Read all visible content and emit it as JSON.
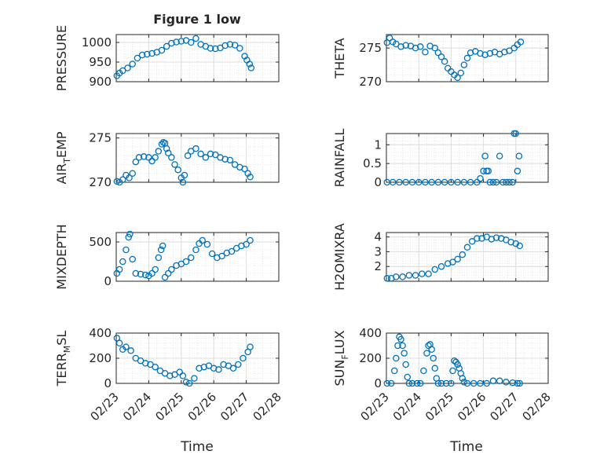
{
  "figure": {
    "title": "Figure 1 low",
    "marker_color": "#0072BD",
    "x_tick_labels": [
      "02/23",
      "02/24",
      "02/25",
      "02/26",
      "02/27",
      "02/28"
    ],
    "x_label": "Time"
  },
  "chart_data": [
    {
      "type": "scatter",
      "ylabel": "PRESSURE",
      "ylim": [
        900,
        1020
      ],
      "yticks": [
        900,
        950,
        1000
      ],
      "xlim": [
        "02/23",
        "02/28"
      ],
      "grid": true,
      "marker": "circle-open",
      "x_days": [
        0.02,
        0.1,
        0.2,
        0.35,
        0.5,
        0.65,
        0.8,
        0.95,
        1.1,
        1.25,
        1.4,
        1.55,
        1.7,
        1.85,
        2.0,
        2.15,
        2.3,
        2.45,
        2.6,
        2.75,
        2.9,
        3.05,
        3.2,
        3.35,
        3.5,
        3.65,
        3.8,
        3.95,
        4.02,
        4.1,
        4.15
      ],
      "y": [
        915,
        922,
        928,
        935,
        945,
        960,
        968,
        970,
        972,
        975,
        980,
        990,
        998,
        1001,
        1003,
        1005,
        1000,
        1010,
        995,
        990,
        985,
        984,
        986,
        992,
        995,
        993,
        985,
        965,
        955,
        945,
        935
      ]
    },
    {
      "type": "scatter",
      "ylabel": "THETA",
      "ylim": [
        270,
        277
      ],
      "yticks": [
        270,
        275
      ],
      "xlim": [
        "02/23",
        "02/28"
      ],
      "grid": true,
      "marker": "circle-open",
      "x_days": [
        0.02,
        0.1,
        0.2,
        0.3,
        0.45,
        0.6,
        0.75,
        0.9,
        1.05,
        1.2,
        1.35,
        1.5,
        1.6,
        1.7,
        1.8,
        1.9,
        2.0,
        2.1,
        2.2,
        2.3,
        2.4,
        2.5,
        2.6,
        2.75,
        2.9,
        3.05,
        3.2,
        3.35,
        3.5,
        3.65,
        3.8,
        3.95,
        4.05,
        4.15
      ],
      "y": [
        275.8,
        276.5,
        275.9,
        275.6,
        275.2,
        275.4,
        275.3,
        275.0,
        275.2,
        274.4,
        275.3,
        275.0,
        274.3,
        273.7,
        273.0,
        272.0,
        271.5,
        271.0,
        270.6,
        271.3,
        272.5,
        273.5,
        274.3,
        274.5,
        274.2,
        274.0,
        274.2,
        274.4,
        274.1,
        274.4,
        274.6,
        275.0,
        275.5,
        275.9
      ]
    },
    {
      "type": "scatter",
      "ylabel": "AIR_TEMP",
      "ylim": [
        270,
        275.5
      ],
      "yticks": [
        270,
        275
      ],
      "xlim": [
        "02/23",
        "02/28"
      ],
      "grid": true,
      "marker": "circle-open",
      "x_days": [
        0.02,
        0.1,
        0.2,
        0.3,
        0.4,
        0.5,
        0.6,
        0.7,
        0.85,
        1.0,
        1.1,
        1.2,
        1.3,
        1.4,
        1.45,
        1.5,
        1.55,
        1.6,
        1.7,
        1.8,
        1.9,
        2.0,
        2.05,
        2.1,
        2.2,
        2.3,
        2.45,
        2.6,
        2.75,
        2.9,
        3.05,
        3.2,
        3.35,
        3.5,
        3.65,
        3.8,
        3.95,
        4.05,
        4.12
      ],
      "y": [
        270.1,
        270.0,
        270.3,
        270.8,
        270.5,
        271.0,
        272.3,
        272.8,
        272.9,
        272.8,
        272.4,
        272.8,
        273.5,
        274.3,
        274.5,
        274.4,
        273.8,
        273.3,
        272.8,
        272.0,
        271.4,
        270.5,
        270.0,
        270.8,
        273.0,
        273.5,
        273.8,
        273.2,
        272.8,
        273.2,
        273.1,
        272.8,
        272.6,
        272.5,
        272.0,
        271.7,
        271.5,
        271.0,
        270.6
      ]
    },
    {
      "type": "scatter",
      "ylabel": "RAINFALL",
      "ylim": [
        0,
        1.3
      ],
      "yticks": [
        0,
        0.5,
        1
      ],
      "xlim": [
        "02/23",
        "02/28"
      ],
      "grid": true,
      "marker": "circle-open",
      "x_days": [
        0.02,
        0.2,
        0.4,
        0.6,
        0.8,
        1.0,
        1.2,
        1.4,
        1.6,
        1.8,
        2.0,
        2.2,
        2.4,
        2.6,
        2.8,
        2.9,
        3.0,
        3.05,
        3.1,
        3.15,
        3.2,
        3.3,
        3.4,
        3.5,
        3.6,
        3.7,
        3.8,
        3.9,
        3.95,
        4.0,
        4.05,
        4.1
      ],
      "y": [
        0,
        0,
        0,
        0,
        0,
        0,
        0,
        0,
        0,
        0,
        0,
        0,
        0,
        0,
        0,
        0.1,
        0.3,
        0.7,
        0.3,
        0.3,
        0,
        0,
        0,
        0.7,
        0,
        0,
        0,
        0,
        1.3,
        1.3,
        0.3,
        0.7
      ]
    },
    {
      "type": "scatter",
      "ylabel": "MIXDEPTH",
      "ylim": [
        0,
        620
      ],
      "yticks": [
        0,
        500
      ],
      "xlim": [
        "02/23",
        "02/28"
      ],
      "grid": true,
      "marker": "circle-open",
      "x_days": [
        0.02,
        0.1,
        0.2,
        0.3,
        0.38,
        0.42,
        0.5,
        0.6,
        0.75,
        0.9,
        1.0,
        1.1,
        1.2,
        1.3,
        1.38,
        1.43,
        1.5,
        1.6,
        1.7,
        1.85,
        2.0,
        2.15,
        2.3,
        2.45,
        2.55,
        2.65,
        2.8,
        2.95,
        3.1,
        3.25,
        3.4,
        3.55,
        3.7,
        3.85,
        4.0,
        4.12
      ],
      "y": [
        100,
        150,
        250,
        400,
        560,
        600,
        280,
        100,
        90,
        80,
        70,
        100,
        150,
        300,
        400,
        450,
        50,
        100,
        150,
        200,
        220,
        250,
        300,
        400,
        480,
        520,
        470,
        350,
        300,
        320,
        360,
        380,
        420,
        450,
        470,
        520
      ]
    },
    {
      "type": "scatter",
      "ylabel": "H2OMIXRA",
      "ylim": [
        1,
        4.3
      ],
      "yticks": [
        2,
        3,
        4
      ],
      "xlim": [
        "02/23",
        "02/28"
      ],
      "grid": true,
      "marker": "circle-open",
      "x_days": [
        0.02,
        0.15,
        0.3,
        0.5,
        0.7,
        0.9,
        1.1,
        1.3,
        1.5,
        1.7,
        1.9,
        2.05,
        2.2,
        2.35,
        2.5,
        2.65,
        2.8,
        2.95,
        3.1,
        3.25,
        3.4,
        3.55,
        3.7,
        3.85,
        4.0,
        4.12
      ],
      "y": [
        1.2,
        1.2,
        1.3,
        1.3,
        1.4,
        1.4,
        1.5,
        1.5,
        1.8,
        2.0,
        2.2,
        2.3,
        2.5,
        2.8,
        3.3,
        3.7,
        3.9,
        3.9,
        4.0,
        3.85,
        3.95,
        3.9,
        3.8,
        3.65,
        3.55,
        3.4
      ]
    },
    {
      "type": "scatter",
      "ylabel": "TERR_MSL",
      "ylim": [
        0,
        400
      ],
      "yticks": [
        0,
        200,
        400
      ],
      "xlim": [
        "02/23",
        "02/28"
      ],
      "grid": true,
      "marker": "circle-open",
      "x_days": [
        0.02,
        0.1,
        0.2,
        0.3,
        0.45,
        0.6,
        0.75,
        0.9,
        1.05,
        1.2,
        1.35,
        1.5,
        1.65,
        1.8,
        1.95,
        2.05,
        2.15,
        2.25,
        2.4,
        2.55,
        2.7,
        2.85,
        3.0,
        3.15,
        3.3,
        3.45,
        3.6,
        3.75,
        3.9,
        4.05,
        4.12
      ],
      "y": [
        360,
        320,
        270,
        290,
        260,
        200,
        180,
        160,
        150,
        130,
        100,
        80,
        60,
        70,
        90,
        60,
        10,
        0,
        40,
        120,
        130,
        140,
        120,
        110,
        150,
        140,
        120,
        150,
        200,
        250,
        290
      ]
    },
    {
      "type": "scatter",
      "ylabel": "SUN_FLUX",
      "ylim": [
        0,
        400
      ],
      "yticks": [
        0,
        200,
        400
      ],
      "xlim": [
        "02/23",
        "02/28"
      ],
      "grid": true,
      "marker": "circle-open",
      "x_days": [
        0.02,
        0.15,
        0.25,
        0.3,
        0.35,
        0.4,
        0.45,
        0.5,
        0.55,
        0.6,
        0.65,
        0.7,
        0.8,
        0.95,
        1.05,
        1.15,
        1.25,
        1.3,
        1.35,
        1.4,
        1.45,
        1.5,
        1.55,
        1.6,
        1.7,
        1.85,
        2.0,
        2.05,
        2.1,
        2.15,
        2.2,
        2.25,
        2.3,
        2.35,
        2.4,
        2.5,
        2.7,
        2.9,
        3.1,
        3.3,
        3.5,
        3.7,
        3.9,
        4.05,
        4.12
      ],
      "y": [
        0,
        0,
        100,
        200,
        300,
        370,
        350,
        300,
        240,
        150,
        50,
        0,
        0,
        0,
        0,
        100,
        240,
        300,
        310,
        270,
        200,
        120,
        40,
        0,
        0,
        0,
        0,
        100,
        180,
        170,
        150,
        120,
        80,
        40,
        10,
        0,
        0,
        0,
        0,
        20,
        20,
        10,
        5,
        0,
        0
      ]
    }
  ]
}
